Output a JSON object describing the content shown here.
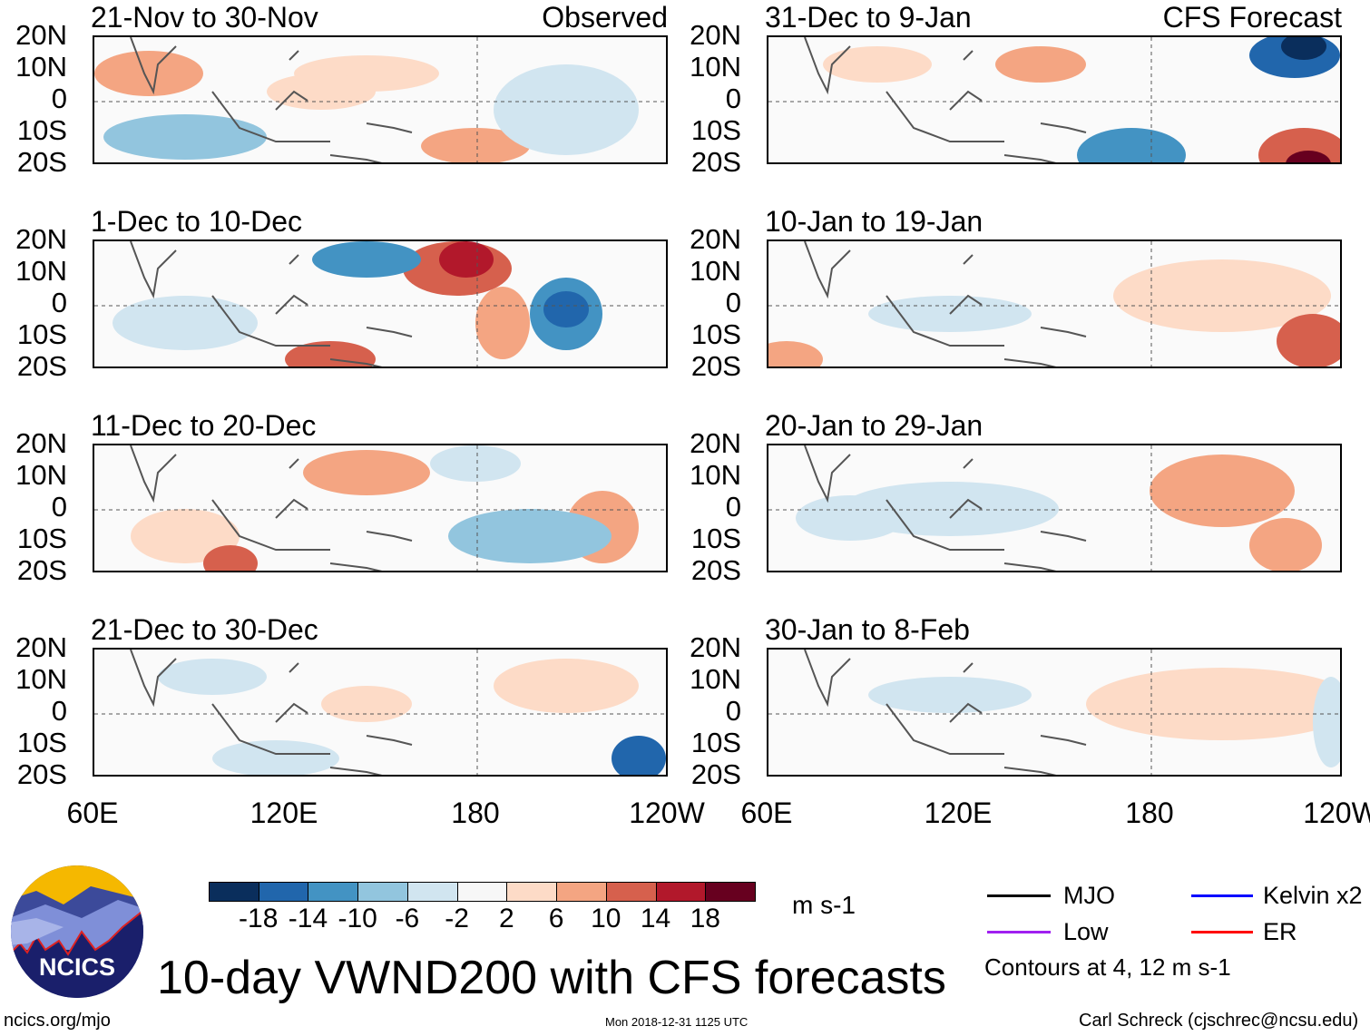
{
  "panels": {
    "left": [
      {
        "title": "21-Nov to 30-Nov",
        "tag": "Observed"
      },
      {
        "title": "1-Dec to 10-Dec"
      },
      {
        "title": "11-Dec to 20-Dec"
      },
      {
        "title": "21-Dec to 30-Dec"
      }
    ],
    "right": [
      {
        "title": "31-Dec to 9-Jan",
        "tag": "CFS Forecast"
      },
      {
        "title": "10-Jan to 19-Jan"
      },
      {
        "title": "20-Jan to 29-Jan"
      },
      {
        "title": "30-Jan to 8-Feb"
      }
    ]
  },
  "lat_labels": [
    "20N",
    "10N",
    "0",
    "10S",
    "20S"
  ],
  "lon_labels": [
    "60E",
    "120E",
    "180",
    "120W"
  ],
  "colorbar": {
    "colors": [
      "#0a2e5c",
      "#2166ac",
      "#4393c3",
      "#92c5de",
      "#d1e5f0",
      "#f7f7f7",
      "#fddbc7",
      "#f4a582",
      "#d6604d",
      "#b2182b",
      "#67001f"
    ],
    "labels": [
      "-18",
      "-14",
      "-10",
      "-6",
      "-2",
      "2",
      "6",
      "10",
      "14",
      "18"
    ],
    "units": "m s-1"
  },
  "legend": {
    "items": [
      {
        "label": "MJO",
        "color": "#000000"
      },
      {
        "label": "Kelvin x2",
        "color": "#0000ff"
      },
      {
        "label": "Low",
        "color": "#a020f0"
      },
      {
        "label": "ER",
        "color": "#ff0000"
      }
    ],
    "note": "Contours at 4, 12 m s-1"
  },
  "logo": {
    "text": "NCICS"
  },
  "title": "10-day VWND200 with CFS forecasts",
  "footer": {
    "url": "ncics.org/mjo",
    "timestamp": "Mon 2018-12-31 1125 UTC",
    "author": "Carl Schreck (cjschrec@ncsu.edu)"
  }
}
